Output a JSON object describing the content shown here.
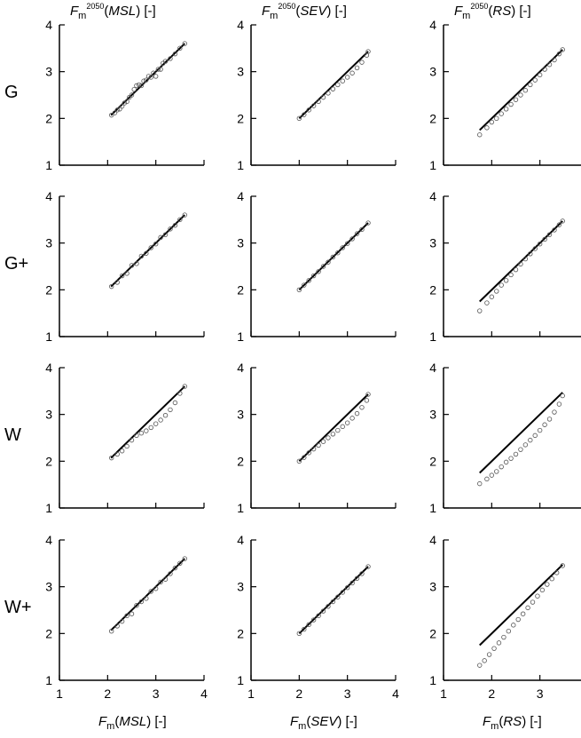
{
  "column_titles": [
    {
      "F": "F",
      "sub": "m",
      "sup": "2050",
      "pre": "(",
      "var": "MSL",
      "post": ") [-]"
    },
    {
      "F": "F",
      "sub": "m",
      "sup": "2050",
      "pre": "(",
      "var": "SEV",
      "post": ") [-]"
    },
    {
      "F": "F",
      "sub": "m",
      "sup": "2050",
      "pre": "(",
      "var": "RS",
      "post": ") [-]"
    }
  ],
  "x_titles": [
    {
      "F": "F",
      "sub": "m",
      "pre": "(",
      "var": "MSL",
      "post": ") [-]"
    },
    {
      "F": "F",
      "sub": "m",
      "pre": "(",
      "var": "SEV",
      "post": ") [-]"
    },
    {
      "F": "F",
      "sub": "m",
      "pre": "(",
      "var": "RS",
      "post": ") [-]"
    }
  ],
  "row_labels": [
    "G",
    "G+",
    "W",
    "W+"
  ],
  "chart_data": {
    "type": "scatter",
    "layout": "4x3 small multiples",
    "xlim": [
      1,
      4
    ],
    "ylim": [
      1,
      4
    ],
    "y_ticks": [
      "1",
      "2",
      "3",
      "4"
    ],
    "x_ticks": [
      "1",
      "2",
      "3",
      "4"
    ],
    "reference_line": "1:1 line",
    "columns": [
      "MSL",
      "SEV",
      "RS"
    ],
    "rows": [
      "G",
      "G+",
      "W",
      "W+"
    ],
    "x_range_by_column": [
      [
        2.07,
        3.6
      ],
      [
        2.0,
        3.43
      ],
      [
        1.75,
        3.47
      ]
    ],
    "panels": [
      {
        "row": "G",
        "column": "MSL",
        "points": [
          [
            2.08,
            2.07
          ],
          [
            2.15,
            2.12
          ],
          [
            2.2,
            2.18
          ],
          [
            2.25,
            2.2
          ],
          [
            2.3,
            2.26
          ],
          [
            2.35,
            2.33
          ],
          [
            2.4,
            2.36
          ],
          [
            2.45,
            2.45
          ],
          [
            2.5,
            2.5
          ],
          [
            2.55,
            2.62
          ],
          [
            2.6,
            2.7
          ],
          [
            2.65,
            2.72
          ],
          [
            2.7,
            2.7
          ],
          [
            2.75,
            2.8
          ],
          [
            2.8,
            2.82
          ],
          [
            2.85,
            2.9
          ],
          [
            2.9,
            2.88
          ],
          [
            2.95,
            2.97
          ],
          [
            3.0,
            2.9
          ],
          [
            3.05,
            3.05
          ],
          [
            3.1,
            3.05
          ],
          [
            3.15,
            3.18
          ],
          [
            3.2,
            3.22
          ],
          [
            3.3,
            3.28
          ],
          [
            3.4,
            3.38
          ],
          [
            3.5,
            3.5
          ],
          [
            3.6,
            3.6
          ]
        ]
      },
      {
        "row": "G",
        "column": "SEV",
        "points": [
          [
            2.0,
            2.0
          ],
          [
            2.1,
            2.08
          ],
          [
            2.2,
            2.18
          ],
          [
            2.3,
            2.27
          ],
          [
            2.4,
            2.36
          ],
          [
            2.5,
            2.45
          ],
          [
            2.6,
            2.54
          ],
          [
            2.7,
            2.63
          ],
          [
            2.8,
            2.72
          ],
          [
            2.9,
            2.8
          ],
          [
            3.0,
            2.88
          ],
          [
            3.1,
            2.97
          ],
          [
            3.2,
            3.08
          ],
          [
            3.3,
            3.2
          ],
          [
            3.4,
            3.35
          ],
          [
            3.43,
            3.43
          ]
        ]
      },
      {
        "row": "G",
        "column": "RS",
        "points": [
          [
            1.75,
            1.65
          ],
          [
            1.9,
            1.8
          ],
          [
            2.0,
            1.92
          ],
          [
            2.1,
            2.0
          ],
          [
            2.2,
            2.1
          ],
          [
            2.3,
            2.2
          ],
          [
            2.4,
            2.3
          ],
          [
            2.5,
            2.4
          ],
          [
            2.6,
            2.5
          ],
          [
            2.7,
            2.6
          ],
          [
            2.8,
            2.72
          ],
          [
            2.9,
            2.82
          ],
          [
            3.0,
            2.93
          ],
          [
            3.1,
            3.05
          ],
          [
            3.2,
            3.15
          ],
          [
            3.3,
            3.25
          ],
          [
            3.4,
            3.38
          ],
          [
            3.47,
            3.47
          ]
        ]
      },
      {
        "row": "G+",
        "column": "MSL",
        "points": [
          [
            2.08,
            2.07
          ],
          [
            2.2,
            2.16
          ],
          [
            2.3,
            2.3
          ],
          [
            2.4,
            2.35
          ],
          [
            2.5,
            2.52
          ],
          [
            2.6,
            2.56
          ],
          [
            2.7,
            2.72
          ],
          [
            2.8,
            2.78
          ],
          [
            2.9,
            2.9
          ],
          [
            3.0,
            2.98
          ],
          [
            3.1,
            3.12
          ],
          [
            3.2,
            3.18
          ],
          [
            3.3,
            3.3
          ],
          [
            3.4,
            3.38
          ],
          [
            3.5,
            3.5
          ],
          [
            3.6,
            3.6
          ]
        ]
      },
      {
        "row": "G+",
        "column": "SEV",
        "points": [
          [
            2.0,
            2.0
          ],
          [
            2.1,
            2.1
          ],
          [
            2.2,
            2.2
          ],
          [
            2.3,
            2.3
          ],
          [
            2.4,
            2.39
          ],
          [
            2.5,
            2.5
          ],
          [
            2.6,
            2.59
          ],
          [
            2.7,
            2.7
          ],
          [
            2.8,
            2.79
          ],
          [
            2.9,
            2.9
          ],
          [
            3.0,
            2.99
          ],
          [
            3.1,
            3.09
          ],
          [
            3.2,
            3.2
          ],
          [
            3.3,
            3.29
          ],
          [
            3.43,
            3.43
          ]
        ]
      },
      {
        "row": "G+",
        "column": "RS",
        "points": [
          [
            1.75,
            1.55
          ],
          [
            1.9,
            1.72
          ],
          [
            2.0,
            1.85
          ],
          [
            2.1,
            1.97
          ],
          [
            2.2,
            2.1
          ],
          [
            2.3,
            2.2
          ],
          [
            2.4,
            2.32
          ],
          [
            2.5,
            2.43
          ],
          [
            2.6,
            2.55
          ],
          [
            2.7,
            2.66
          ],
          [
            2.8,
            2.77
          ],
          [
            2.9,
            2.88
          ],
          [
            3.0,
            2.98
          ],
          [
            3.1,
            3.08
          ],
          [
            3.2,
            3.18
          ],
          [
            3.3,
            3.28
          ],
          [
            3.4,
            3.39
          ],
          [
            3.47,
            3.47
          ]
        ]
      },
      {
        "row": "W",
        "column": "MSL",
        "points": [
          [
            2.08,
            2.07
          ],
          [
            2.2,
            2.15
          ],
          [
            2.3,
            2.22
          ],
          [
            2.4,
            2.32
          ],
          [
            2.5,
            2.45
          ],
          [
            2.6,
            2.55
          ],
          [
            2.7,
            2.6
          ],
          [
            2.8,
            2.65
          ],
          [
            2.9,
            2.72
          ],
          [
            3.0,
            2.8
          ],
          [
            3.1,
            2.88
          ],
          [
            3.2,
            2.98
          ],
          [
            3.3,
            3.1
          ],
          [
            3.4,
            3.25
          ],
          [
            3.5,
            3.45
          ],
          [
            3.6,
            3.6
          ]
        ]
      },
      {
        "row": "W",
        "column": "SEV",
        "points": [
          [
            2.0,
            2.0
          ],
          [
            2.1,
            2.08
          ],
          [
            2.2,
            2.18
          ],
          [
            2.3,
            2.26
          ],
          [
            2.4,
            2.34
          ],
          [
            2.5,
            2.42
          ],
          [
            2.6,
            2.5
          ],
          [
            2.7,
            2.58
          ],
          [
            2.8,
            2.66
          ],
          [
            2.9,
            2.74
          ],
          [
            3.0,
            2.82
          ],
          [
            3.1,
            2.92
          ],
          [
            3.2,
            3.02
          ],
          [
            3.3,
            3.15
          ],
          [
            3.4,
            3.3
          ],
          [
            3.43,
            3.43
          ]
        ]
      },
      {
        "row": "W",
        "column": "RS",
        "points": [
          [
            1.75,
            1.52
          ],
          [
            1.9,
            1.62
          ],
          [
            2.0,
            1.7
          ],
          [
            2.1,
            1.78
          ],
          [
            2.2,
            1.88
          ],
          [
            2.3,
            1.98
          ],
          [
            2.4,
            2.06
          ],
          [
            2.5,
            2.15
          ],
          [
            2.6,
            2.25
          ],
          [
            2.7,
            2.35
          ],
          [
            2.8,
            2.45
          ],
          [
            2.9,
            2.55
          ],
          [
            3.0,
            2.66
          ],
          [
            3.1,
            2.78
          ],
          [
            3.2,
            2.9
          ],
          [
            3.3,
            3.05
          ],
          [
            3.4,
            3.22
          ],
          [
            3.47,
            3.4
          ]
        ]
      },
      {
        "row": "W+",
        "column": "MSL",
        "points": [
          [
            2.08,
            2.05
          ],
          [
            2.2,
            2.16
          ],
          [
            2.3,
            2.26
          ],
          [
            2.4,
            2.38
          ],
          [
            2.5,
            2.42
          ],
          [
            2.6,
            2.6
          ],
          [
            2.7,
            2.68
          ],
          [
            2.8,
            2.75
          ],
          [
            2.9,
            2.9
          ],
          [
            3.0,
            2.96
          ],
          [
            3.1,
            3.1
          ],
          [
            3.2,
            3.16
          ],
          [
            3.3,
            3.28
          ],
          [
            3.4,
            3.4
          ],
          [
            3.5,
            3.5
          ],
          [
            3.6,
            3.6
          ]
        ]
      },
      {
        "row": "W+",
        "column": "SEV",
        "points": [
          [
            2.0,
            2.0
          ],
          [
            2.1,
            2.09
          ],
          [
            2.2,
            2.19
          ],
          [
            2.3,
            2.29
          ],
          [
            2.4,
            2.38
          ],
          [
            2.5,
            2.48
          ],
          [
            2.6,
            2.58
          ],
          [
            2.7,
            2.68
          ],
          [
            2.8,
            2.78
          ],
          [
            2.9,
            2.88
          ],
          [
            3.0,
            2.98
          ],
          [
            3.1,
            3.08
          ],
          [
            3.2,
            3.18
          ],
          [
            3.3,
            3.28
          ],
          [
            3.43,
            3.43
          ]
        ]
      },
      {
        "row": "W+",
        "column": "RS",
        "points": [
          [
            1.75,
            1.32
          ],
          [
            1.85,
            1.42
          ],
          [
            1.95,
            1.55
          ],
          [
            2.05,
            1.68
          ],
          [
            2.15,
            1.8
          ],
          [
            2.25,
            1.92
          ],
          [
            2.35,
            2.05
          ],
          [
            2.45,
            2.18
          ],
          [
            2.55,
            2.3
          ],
          [
            2.65,
            2.42
          ],
          [
            2.75,
            2.55
          ],
          [
            2.85,
            2.67
          ],
          [
            2.95,
            2.8
          ],
          [
            3.05,
            2.93
          ],
          [
            3.15,
            3.05
          ],
          [
            3.25,
            3.17
          ],
          [
            3.35,
            3.3
          ],
          [
            3.47,
            3.45
          ]
        ]
      }
    ]
  }
}
